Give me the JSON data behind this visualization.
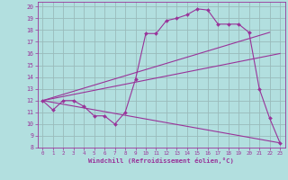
{
  "xlabel": "Windchill (Refroidissement éolien,°C)",
  "bg_color": "#b2dfdf",
  "line_color": "#993399",
  "grid_color": "#99bbbb",
  "xlim": [
    -0.5,
    23.5
  ],
  "ylim": [
    8,
    20.4
  ],
  "xticks": [
    0,
    1,
    2,
    3,
    4,
    5,
    6,
    7,
    8,
    9,
    10,
    11,
    12,
    13,
    14,
    15,
    16,
    17,
    18,
    19,
    20,
    21,
    22,
    23
  ],
  "yticks": [
    8,
    9,
    10,
    11,
    12,
    13,
    14,
    15,
    16,
    17,
    18,
    19,
    20
  ],
  "line1_x": [
    0,
    1,
    2,
    3,
    4,
    5,
    6,
    7,
    8,
    9,
    10,
    11,
    12,
    13,
    14,
    15,
    16,
    17,
    18,
    19,
    20,
    21,
    22,
    23
  ],
  "line1_y": [
    12,
    11.2,
    12,
    12,
    11.5,
    10.7,
    10.7,
    10,
    11,
    13.8,
    17.7,
    17.7,
    18.8,
    19,
    19.3,
    19.8,
    19.7,
    18.5,
    18.5,
    18.5,
    17.8,
    13,
    10.5,
    8.4
  ],
  "line2_x": [
    0,
    22
  ],
  "line2_y": [
    12,
    17.8
  ],
  "line3_x": [
    0,
    23
  ],
  "line3_y": [
    12,
    16.0
  ],
  "line4_x": [
    0,
    23
  ],
  "line4_y": [
    12,
    8.4
  ]
}
